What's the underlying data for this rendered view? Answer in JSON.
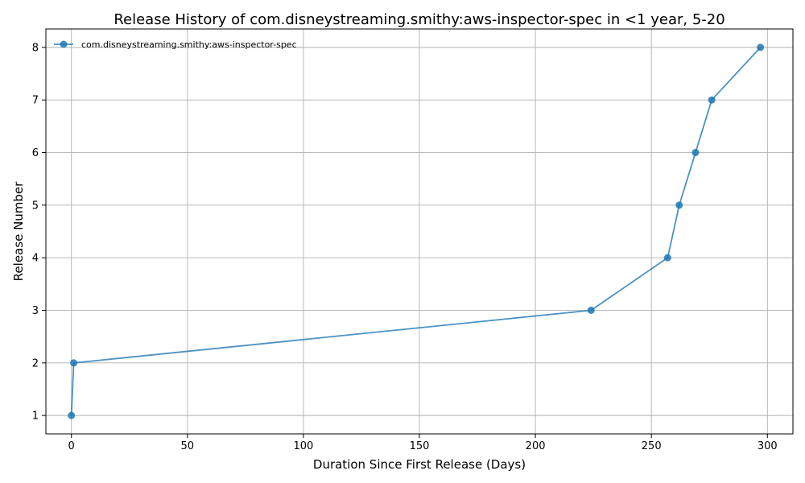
{
  "chart_data": {
    "type": "line",
    "title": "Release History of com.disneystreaming.smithy:aws-inspector-spec in <1 year, 5-20",
    "xlabel": "Duration Since First Release (Days)",
    "ylabel": "Release Number",
    "xlim": [
      -11,
      311
    ],
    "ylim": [
      0.65,
      8.35
    ],
    "xticks": [
      0,
      50,
      100,
      150,
      200,
      250,
      300
    ],
    "yticks": [
      1,
      2,
      3,
      4,
      5,
      6,
      7,
      8
    ],
    "xtick_labels": [
      "0",
      "50",
      "100",
      "150",
      "200",
      "250",
      "300"
    ],
    "ytick_labels": [
      "1",
      "2",
      "3",
      "4",
      "5",
      "6",
      "7",
      "8"
    ],
    "grid": true,
    "legend_position": "top-left",
    "series": [
      {
        "name": "com.disneystreaming.smithy:aws-inspector-spec",
        "color": "#1f77b4",
        "marker": "circle",
        "x": [
          0,
          1,
          224,
          257,
          262,
          269,
          276,
          297
        ],
        "y": [
          1,
          2,
          3,
          4,
          5,
          6,
          7,
          8
        ]
      }
    ]
  }
}
